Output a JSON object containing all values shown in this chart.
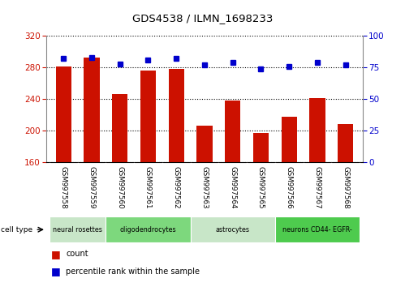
{
  "title": "GDS4538 / ILMN_1698233",
  "samples": [
    "GSM997558",
    "GSM997559",
    "GSM997560",
    "GSM997561",
    "GSM997562",
    "GSM997563",
    "GSM997564",
    "GSM997565",
    "GSM997566",
    "GSM997567",
    "GSM997568"
  ],
  "counts": [
    281,
    293,
    246,
    276,
    278,
    206,
    238,
    197,
    218,
    241,
    208
  ],
  "percentiles": [
    82,
    83,
    78,
    81,
    82,
    77,
    79,
    74,
    76,
    79,
    77
  ],
  "cell_types": [
    {
      "label": "neural rosettes",
      "start": 0,
      "end": 2,
      "color": "#c8e6c8"
    },
    {
      "label": "oligodendrocytes",
      "start": 2,
      "end": 5,
      "color": "#7dd87d"
    },
    {
      "label": "astrocytes",
      "start": 5,
      "end": 8,
      "color": "#c8e6c8"
    },
    {
      "label": "neurons CD44- EGFR-",
      "start": 8,
      "end": 11,
      "color": "#4ecb4e"
    }
  ],
  "bar_color": "#cc1100",
  "dot_color": "#0000cc",
  "left_ylim": [
    160,
    320
  ],
  "left_yticks": [
    160,
    200,
    240,
    280,
    320
  ],
  "right_ylim": [
    0,
    100
  ],
  "right_yticks": [
    0,
    25,
    50,
    75,
    100
  ],
  "legend_count_label": "count",
  "legend_pct_label": "percentile rank within the sample",
  "bar_width": 0.55,
  "left_tick_color": "#cc1100",
  "right_tick_color": "#0000cc",
  "grid_color": "#000000",
  "background_plot": "#ffffff",
  "background_xtick": "#d3d3d3"
}
